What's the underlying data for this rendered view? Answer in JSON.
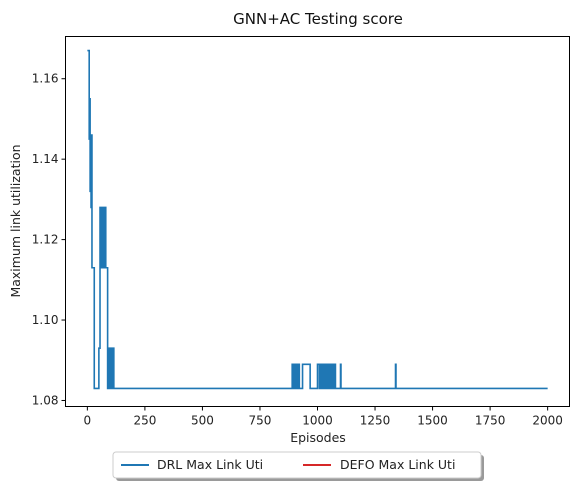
{
  "chart_data": {
    "type": "line",
    "title": "GNN+AC Testing score",
    "xlabel": "Episodes",
    "ylabel": "Maximum link utilization",
    "xlim": [
      -95,
      2095
    ],
    "ylim": [
      1.0785,
      1.1705
    ],
    "xticks": [
      0,
      250,
      500,
      750,
      1000,
      1250,
      1500,
      1750,
      2000
    ],
    "xtick_labels": [
      "0",
      "250",
      "500",
      "750",
      "1000",
      "1250",
      "1500",
      "1750",
      "2000"
    ],
    "yticks": [
      1.08,
      1.1,
      1.12,
      1.14,
      1.16
    ],
    "ytick_labels": [
      "1.08",
      "1.10",
      "1.12",
      "1.14",
      "1.16"
    ],
    "grid": false,
    "legend_position": "below-center",
    "series": [
      {
        "name": "DRL Max Link Uti",
        "color": "#1f77b4",
        "step": true,
        "points": [
          [
            0,
            1.167
          ],
          [
            5,
            1.167
          ],
          [
            8,
            1.145
          ],
          [
            10,
            1.155
          ],
          [
            12,
            1.132
          ],
          [
            14,
            1.14
          ],
          [
            16,
            1.128
          ],
          [
            18,
            1.146
          ],
          [
            20,
            1.113
          ],
          [
            25,
            1.113
          ],
          [
            28,
            1.113
          ],
          [
            30,
            1.083
          ],
          [
            45,
            1.083
          ],
          [
            50,
            1.093
          ],
          [
            55,
            1.128
          ],
          [
            60,
            1.113
          ],
          [
            65,
            1.128
          ],
          [
            70,
            1.113
          ],
          [
            75,
            1.128
          ],
          [
            80,
            1.113
          ],
          [
            85,
            1.113
          ],
          [
            88,
            1.083
          ],
          [
            92,
            1.093
          ],
          [
            98,
            1.083
          ],
          [
            102,
            1.093
          ],
          [
            106,
            1.083
          ],
          [
            110,
            1.093
          ],
          [
            115,
            1.083
          ],
          [
            885,
            1.083
          ],
          [
            890,
            1.089
          ],
          [
            893,
            1.083
          ],
          [
            896,
            1.089
          ],
          [
            899,
            1.083
          ],
          [
            902,
            1.089
          ],
          [
            905,
            1.083
          ],
          [
            908,
            1.089
          ],
          [
            912,
            1.083
          ],
          [
            917,
            1.089
          ],
          [
            921,
            1.083
          ],
          [
            930,
            1.083
          ],
          [
            935,
            1.089
          ],
          [
            960,
            1.089
          ],
          [
            968,
            1.083
          ],
          [
            995,
            1.083
          ],
          [
            1000,
            1.089
          ],
          [
            1008,
            1.083
          ],
          [
            1015,
            1.089
          ],
          [
            1018,
            1.083
          ],
          [
            1022,
            1.089
          ],
          [
            1026,
            1.083
          ],
          [
            1032,
            1.089
          ],
          [
            1035,
            1.083
          ],
          [
            1040,
            1.089
          ],
          [
            1044,
            1.083
          ],
          [
            1048,
            1.089
          ],
          [
            1052,
            1.083
          ],
          [
            1056,
            1.089
          ],
          [
            1060,
            1.083
          ],
          [
            1066,
            1.089
          ],
          [
            1070,
            1.083
          ],
          [
            1074,
            1.089
          ],
          [
            1078,
            1.083
          ],
          [
            1098,
            1.083
          ],
          [
            1100,
            1.089
          ],
          [
            1102,
            1.083
          ],
          [
            1337,
            1.083
          ],
          [
            1339,
            1.089
          ],
          [
            1341,
            1.083
          ],
          [
            2000,
            1.083
          ]
        ]
      },
      {
        "name": "DEFO Max Link Uti",
        "color": "#d62728",
        "points": []
      }
    ]
  }
}
